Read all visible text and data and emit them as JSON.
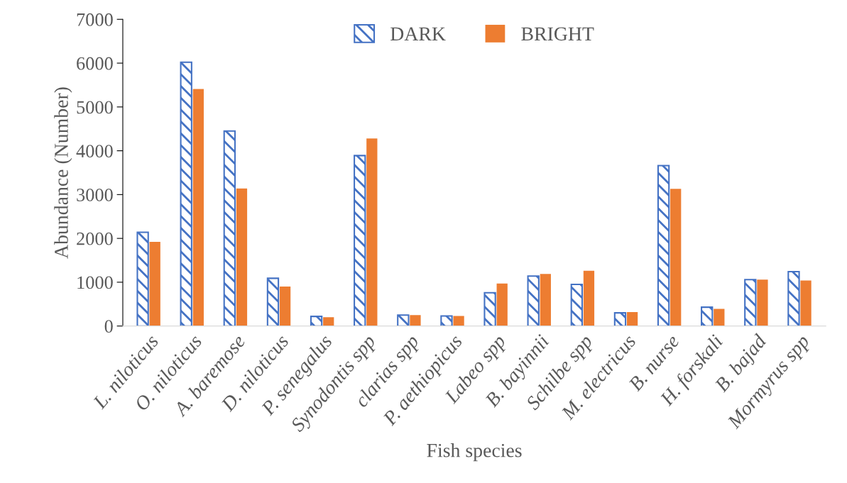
{
  "chart_data": {
    "type": "bar",
    "xlabel": "Fish species",
    "ylabel": "Abundance (Number)",
    "categories": [
      "L. niloticus",
      "O. niloticus",
      "A. baremose",
      "D. niloticus",
      "P. senegalus",
      "Synodontis spp",
      "clarias spp",
      "P. aethiopicus",
      "Labeo spp",
      "B. bayinnii",
      "Schilbe spp",
      "M. electricus",
      "B. nurse",
      "H. forskali",
      "B. bajad",
      "Mormyrus spp"
    ],
    "series": [
      {
        "name": "DARK",
        "color": "#4472c4",
        "values": [
          2140,
          6020,
          4450,
          1090,
          220,
          3890,
          250,
          230,
          760,
          1140,
          950,
          300,
          3660,
          430,
          1060,
          1240
        ]
      },
      {
        "name": "BRIGHT",
        "color": "#ed7d31",
        "values": [
          1920,
          5410,
          3140,
          900,
          200,
          4280,
          250,
          230,
          970,
          1190,
          1260,
          320,
          3130,
          390,
          1060,
          1040
        ]
      }
    ],
    "ylim": [
      0,
      7000
    ],
    "yticks": [
      0,
      1000,
      2000,
      3000,
      4000,
      5000,
      6000,
      7000
    ],
    "grid": false,
    "legend": "top"
  }
}
